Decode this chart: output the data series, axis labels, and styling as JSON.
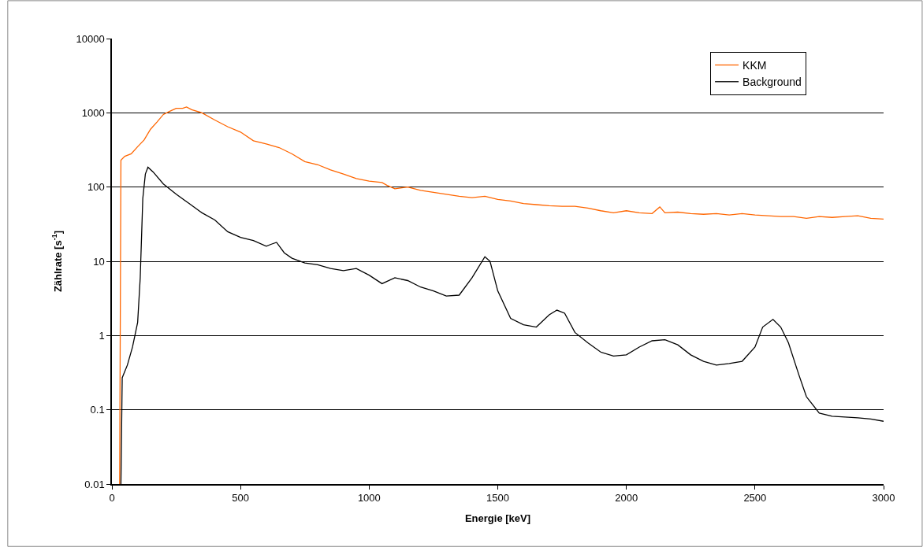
{
  "chart_data": {
    "type": "line",
    "xlabel": "Energie [keV]",
    "ylabel": "Zählrate [s$^{-1}$]",
    "xlim": [
      0,
      3000
    ],
    "xticks": [
      0,
      500,
      1000,
      1500,
      2000,
      2500,
      3000
    ],
    "ylim": [
      0.01,
      10000
    ],
    "yticks": [
      0.01,
      0.1,
      1,
      10,
      100,
      1000,
      10000
    ],
    "log": "y",
    "grid": "y",
    "legend": "top right",
    "marker": "none",
    "line_style": "solid",
    "series": [
      {
        "name": "KKM",
        "color": "#ff6600",
        "x": [
          30,
          35,
          50,
          75,
          100,
          125,
          150,
          175,
          200,
          225,
          250,
          275,
          290,
          310,
          350,
          400,
          450,
          500,
          550,
          600,
          650,
          700,
          750,
          800,
          850,
          900,
          950,
          1000,
          1050,
          1070,
          1100,
          1150,
          1200,
          1250,
          1300,
          1350,
          1400,
          1450,
          1500,
          1550,
          1600,
          1650,
          1700,
          1750,
          1800,
          1850,
          1900,
          1950,
          2000,
          2050,
          2100,
          2130,
          2150,
          2200,
          2250,
          2300,
          2350,
          2400,
          2450,
          2500,
          2550,
          2600,
          2650,
          2700,
          2750,
          2800,
          2850,
          2900,
          2950,
          3000
        ],
        "values": [
          0.01,
          230,
          260,
          280,
          350,
          430,
          600,
          750,
          950,
          1050,
          1150,
          1150,
          1200,
          1100,
          1000,
          800,
          650,
          550,
          420,
          380,
          340,
          280,
          220,
          200,
          170,
          150,
          130,
          120,
          115,
          105,
          95,
          100,
          90,
          85,
          80,
          75,
          72,
          75,
          68,
          65,
          60,
          58,
          56,
          55,
          55,
          52,
          48,
          45,
          48,
          45,
          44,
          54,
          45,
          46,
          44,
          43,
          44,
          42,
          44,
          42,
          41,
          40,
          40,
          38,
          40,
          39,
          40,
          41,
          38,
          37
        ]
      },
      {
        "name": "Background",
        "color": "#000000",
        "x": [
          35,
          40,
          60,
          80,
          100,
          110,
          120,
          130,
          140,
          160,
          200,
          250,
          300,
          350,
          400,
          450,
          500,
          550,
          600,
          620,
          640,
          670,
          700,
          750,
          800,
          850,
          900,
          950,
          1000,
          1050,
          1100,
          1150,
          1200,
          1250,
          1300,
          1350,
          1400,
          1450,
          1470,
          1500,
          1550,
          1600,
          1650,
          1700,
          1730,
          1760,
          1800,
          1850,
          1900,
          1950,
          2000,
          2050,
          2100,
          2150,
          2200,
          2250,
          2300,
          2350,
          2400,
          2450,
          2500,
          2530,
          2570,
          2600,
          2630,
          2670,
          2700,
          2750,
          2800,
          2850,
          2900,
          2950,
          3000
        ],
        "values": [
          0.01,
          0.27,
          0.4,
          0.7,
          1.5,
          6,
          70,
          150,
          185,
          160,
          110,
          80,
          60,
          45,
          36,
          25,
          21,
          19,
          16,
          17,
          18,
          13,
          11,
          9.5,
          9,
          8,
          7.5,
          8,
          6.5,
          5,
          6,
          5.5,
          4.5,
          4,
          3.4,
          3.5,
          6,
          11.5,
          10,
          4,
          1.7,
          1.4,
          1.3,
          1.9,
          2.2,
          2,
          1.1,
          0.8,
          0.6,
          0.53,
          0.55,
          0.7,
          0.85,
          0.88,
          0.75,
          0.55,
          0.45,
          0.4,
          0.42,
          0.45,
          0.7,
          1.3,
          1.65,
          1.3,
          0.8,
          0.3,
          0.15,
          0.09,
          0.082,
          0.08,
          0.078,
          0.075,
          0.07
        ]
      }
    ]
  }
}
